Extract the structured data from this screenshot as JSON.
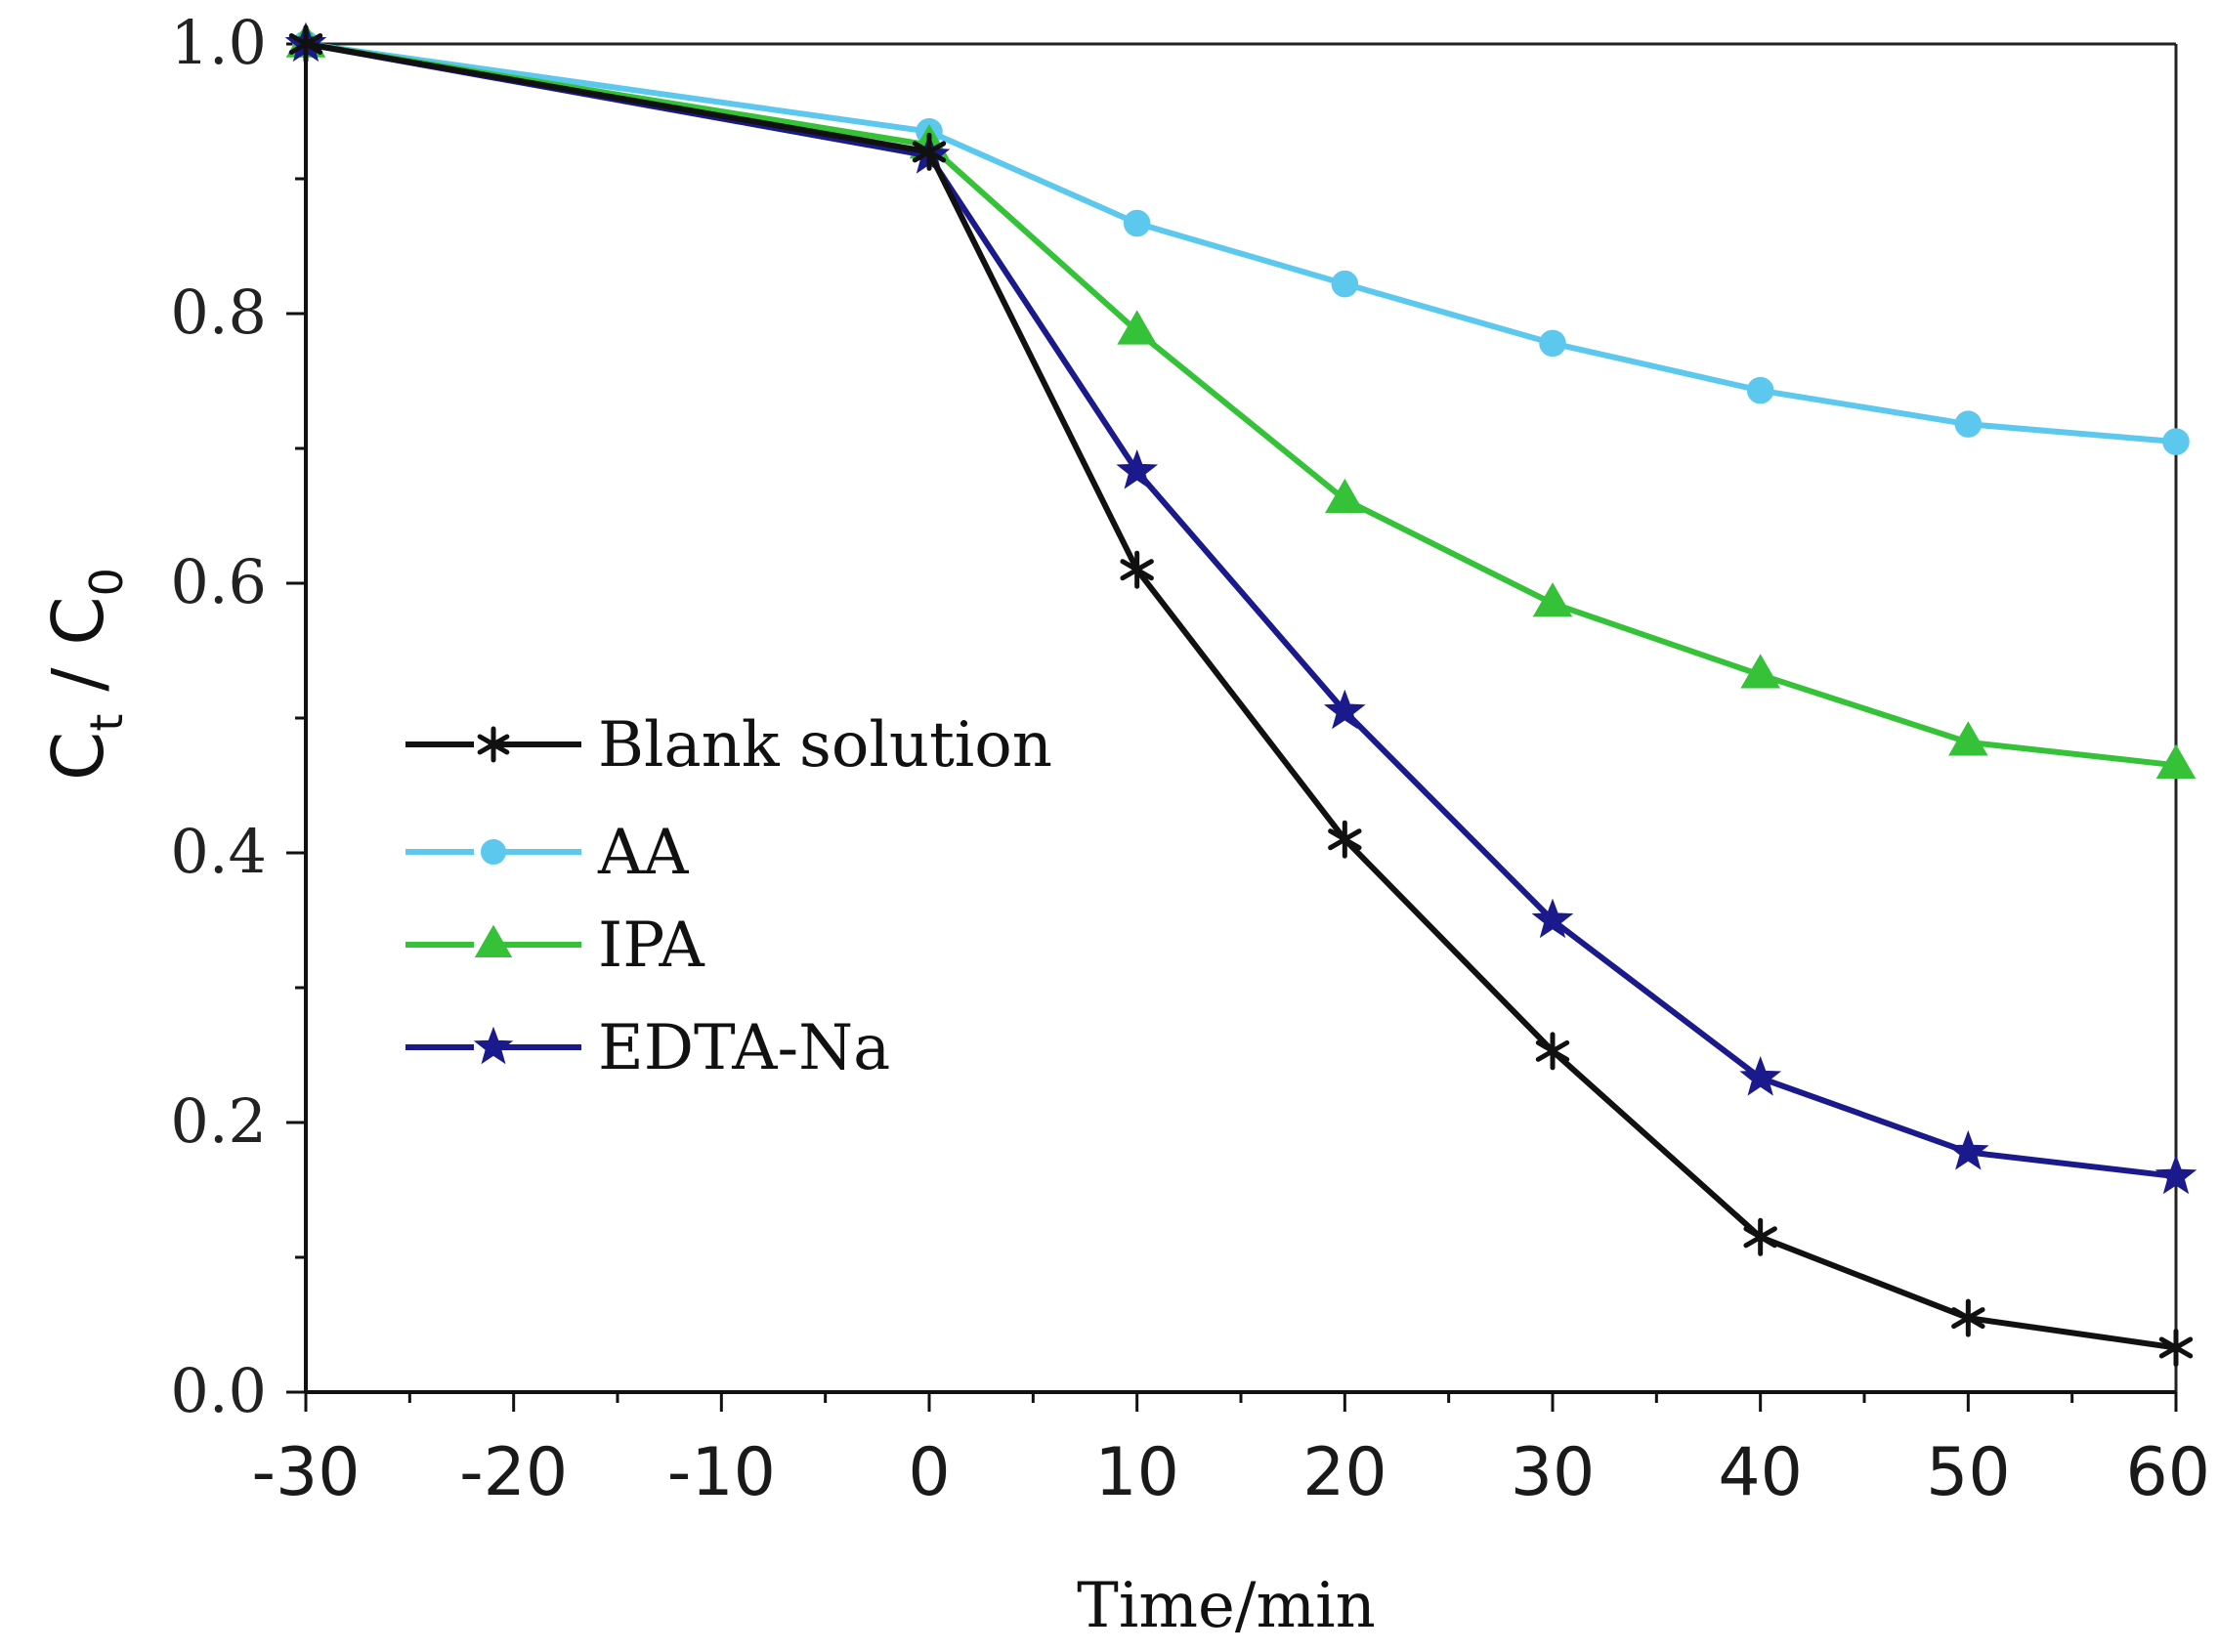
{
  "chart_data": {
    "type": "line",
    "title": "",
    "xlabel": "Time/min",
    "ylabel_main": "C",
    "ylabel_sub1": "t",
    "ylabel_sep": " / ",
    "ylabel_sub2": "0",
    "xlim": [
      -30,
      60
    ],
    "ylim": [
      0.0,
      1.0
    ],
    "x_ticks": [
      -30,
      -20,
      -10,
      0,
      10,
      20,
      30,
      40,
      50,
      60
    ],
    "x_tick_labels": [
      "-30",
      "-20",
      "-10",
      "0",
      "10",
      "20",
      "30",
      "40",
      "50",
      "60"
    ],
    "y_ticks": [
      0.0,
      0.2,
      0.4,
      0.6,
      0.8,
      1.0
    ],
    "y_tick_labels": [
      "0.0",
      "0.2",
      "0.4",
      "0.6",
      "0.8",
      "1.0"
    ],
    "grid": false,
    "legend_position": "middle-left",
    "x": [
      -30,
      0,
      10,
      20,
      30,
      40,
      50,
      60
    ],
    "series": [
      {
        "name": "Blank solution",
        "color": "#111111",
        "marker": "x-star",
        "values": [
          1.0,
          0.92,
          0.61,
          0.41,
          0.253,
          0.115,
          0.055,
          0.033
        ]
      },
      {
        "name": "AA",
        "color": "#5cc8ee",
        "marker": "circle",
        "values": [
          1.0,
          0.935,
          0.867,
          0.822,
          0.778,
          0.743,
          0.718,
          0.705
        ]
      },
      {
        "name": "IPA",
        "color": "#35c238",
        "marker": "triangle",
        "values": [
          1.0,
          0.925,
          0.787,
          0.662,
          0.585,
          0.532,
          0.482,
          0.465
        ]
      },
      {
        "name": "EDTA-Na",
        "color": "#1a1a8c",
        "marker": "star",
        "values": [
          1.0,
          0.917,
          0.683,
          0.505,
          0.35,
          0.233,
          0.178,
          0.16
        ]
      }
    ]
  }
}
